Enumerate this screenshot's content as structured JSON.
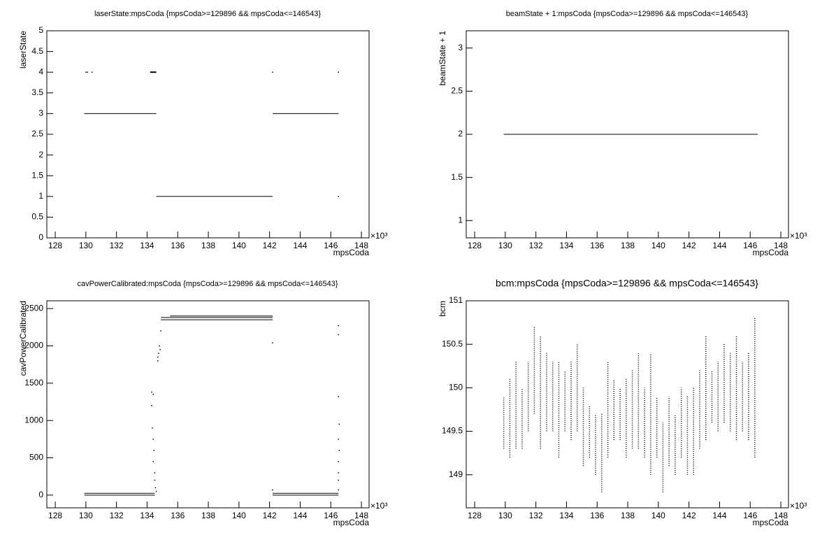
{
  "chart_data": [
    {
      "type": "scatter",
      "title": "laserState:mpsCoda {mpsCoda>=129896 && mpsCoda<=146543}",
      "x_label": "mpsCoda",
      "y_label": "laserState",
      "x_exponent": "×10³",
      "xlim": [
        127.45,
        148.5
      ],
      "xticks": [
        128,
        130,
        132,
        134,
        136,
        138,
        140,
        142,
        144,
        146,
        148
      ],
      "ylim": [
        0,
        5
      ],
      "yticks": [
        0,
        0.5,
        1,
        1.5,
        2,
        2.5,
        3,
        3.5,
        4,
        4.5,
        5
      ],
      "color": "#000000",
      "segments": [
        {
          "y": 3,
          "x": [
            129.9,
            134.6
          ]
        },
        {
          "y": 1,
          "x": [
            134.6,
            142.2
          ]
        },
        {
          "y": 3,
          "x": [
            142.2,
            146.5
          ]
        },
        {
          "y": 4,
          "x": [
            134.2,
            134.6
          ]
        }
      ],
      "points": {
        "x": [
          130,
          130.1,
          130.4,
          142.2,
          146.5,
          146.5
        ],
        "y": [
          4,
          4,
          4,
          4,
          4,
          1
        ]
      }
    },
    {
      "type": "scatter",
      "title": "beamState + 1:mpsCoda {mpsCoda>=129896 && mpsCoda<=146543}",
      "x_label": "mpsCoda",
      "y_label": "beamState + 1",
      "x_exponent": "×10³",
      "xlim": [
        127.45,
        148.5
      ],
      "xticks": [
        128,
        130,
        132,
        134,
        136,
        138,
        140,
        142,
        144,
        146,
        148
      ],
      "ylim": [
        0.8,
        3.2
      ],
      "yticks": [
        1,
        1.5,
        2,
        2.5,
        3
      ],
      "color": "#000000",
      "segments": [
        {
          "y": 2,
          "x": [
            129.9,
            146.5
          ]
        }
      ]
    },
    {
      "type": "scatter",
      "title": "cavPowerCalibrated:mpsCoda {mpsCoda>=129896 && mpsCoda<=146543}",
      "x_label": "mpsCoda",
      "y_label": "cavPowerCalibrated",
      "x_exponent": "×10³",
      "xlim": [
        127.45,
        148.5
      ],
      "xticks": [
        128,
        130,
        132,
        134,
        136,
        138,
        140,
        142,
        144,
        146,
        148
      ],
      "ylim": [
        -170,
        2604
      ],
      "yticks": [
        0,
        500,
        1000,
        1500,
        2000,
        2500
      ],
      "color": "#000000",
      "segments": [
        {
          "y": 0,
          "x": [
            129.9,
            134.5
          ]
        },
        {
          "y": 25,
          "x": [
            129.9,
            134.5
          ]
        },
        {
          "y": 2350,
          "x": [
            134.9,
            142.2
          ]
        },
        {
          "y": 2380,
          "x": [
            134.9,
            142.2
          ]
        },
        {
          "y": 2400,
          "x": [
            135.5,
            142.2
          ]
        },
        {
          "y": 0,
          "x": [
            142.2,
            146.5
          ]
        },
        {
          "y": 25,
          "x": [
            142.2,
            146.5
          ]
        }
      ],
      "points": {
        "x": [
          134.3,
          134.4,
          134.3,
          134.35,
          134.4,
          134.45,
          134.4,
          134.5,
          134.5,
          134.55,
          134.6,
          134.7,
          134.75,
          134.8,
          134.7,
          134.85,
          134.9,
          142.2,
          142.2,
          146.5,
          146.5,
          146.5,
          146.55,
          146.5,
          146.55,
          146.5,
          146.5,
          146.5,
          146.5
        ],
        "y": [
          1380,
          1350,
          1200,
          900,
          750,
          600,
          450,
          300,
          200,
          100,
          50,
          1800,
          1900,
          2000,
          1850,
          1950,
          2200,
          2040,
          70,
          2270,
          2150,
          1320,
          950,
          750,
          600,
          450,
          300,
          200,
          70
        ]
      }
    },
    {
      "type": "range",
      "title": "bcm:mpsCoda {mpsCoda>=129896 && mpsCoda<=146543}",
      "x_label": "mpsCoda",
      "y_label": "bcm",
      "x_exponent": "×10³",
      "xlim": [
        127.45,
        148.5
      ],
      "xticks": [
        128,
        130,
        132,
        134,
        136,
        138,
        140,
        142,
        144,
        146,
        148
      ],
      "ylim": [
        148.62,
        151.0
      ],
      "yticks": [
        149,
        149.5,
        150,
        150.5,
        151
      ],
      "color": "#000000",
      "x": [
        129.9,
        130.3,
        130.7,
        131.1,
        131.5,
        131.9,
        132.3,
        132.7,
        133.1,
        133.5,
        133.9,
        134.3,
        134.7,
        135.1,
        135.5,
        135.9,
        136.3,
        136.7,
        137.1,
        137.5,
        137.9,
        138.3,
        138.7,
        139.1,
        139.5,
        139.9,
        140.3,
        140.7,
        141.1,
        141.5,
        141.9,
        142.3,
        142.7,
        143.1,
        143.5,
        143.9,
        144.3,
        144.7,
        145.1,
        145.5,
        145.9,
        146.3
      ],
      "low": [
        149.3,
        149.2,
        149.3,
        149.3,
        149.5,
        149.7,
        149.3,
        149.5,
        149.5,
        149.2,
        149.5,
        149.4,
        149.5,
        149.1,
        149.2,
        149.0,
        148.8,
        149.2,
        149.4,
        149.4,
        149.2,
        149.3,
        149.3,
        149.2,
        149.0,
        149.2,
        148.8,
        149.1,
        149.0,
        149.2,
        149.0,
        149.0,
        149.3,
        149.4,
        149.6,
        149.5,
        149.6,
        149.5,
        149.4,
        149.5,
        149.4,
        149.2
      ],
      "high": [
        149.9,
        150.1,
        150.3,
        150.0,
        150.3,
        150.7,
        150.6,
        150.4,
        150.3,
        150.3,
        150.2,
        150.3,
        150.5,
        150.0,
        149.8,
        149.7,
        149.7,
        150.3,
        150.1,
        150.0,
        150.1,
        150.2,
        150.4,
        150.0,
        150.4,
        149.9,
        149.6,
        149.9,
        149.7,
        150.0,
        149.9,
        150.0,
        150.2,
        150.6,
        150.2,
        150.3,
        150.5,
        150.4,
        150.6,
        150.3,
        150.4,
        150.8
      ]
    }
  ]
}
